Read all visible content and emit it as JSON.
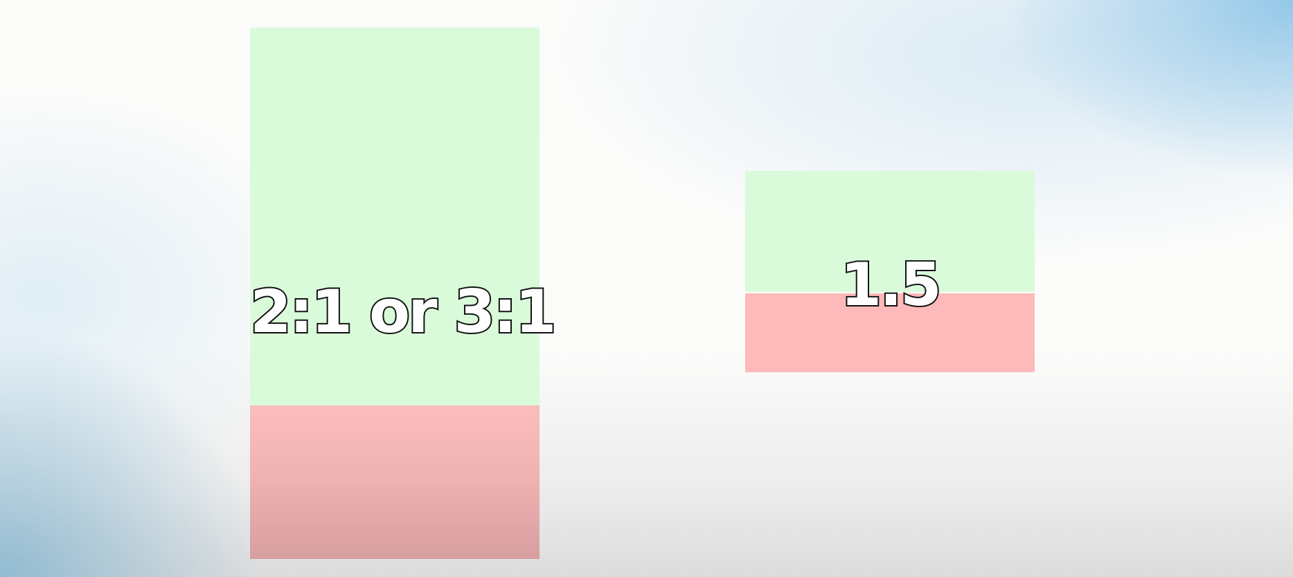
{
  "comparison": {
    "left_bar": {
      "label": "2:1 or 3:1",
      "good_color": "#d9fbda",
      "bad_color": "#fbbcbc"
    },
    "right_bar": {
      "label": "1.5",
      "good_color": "#d9fbda",
      "bad_color": "#feb9ba"
    }
  }
}
